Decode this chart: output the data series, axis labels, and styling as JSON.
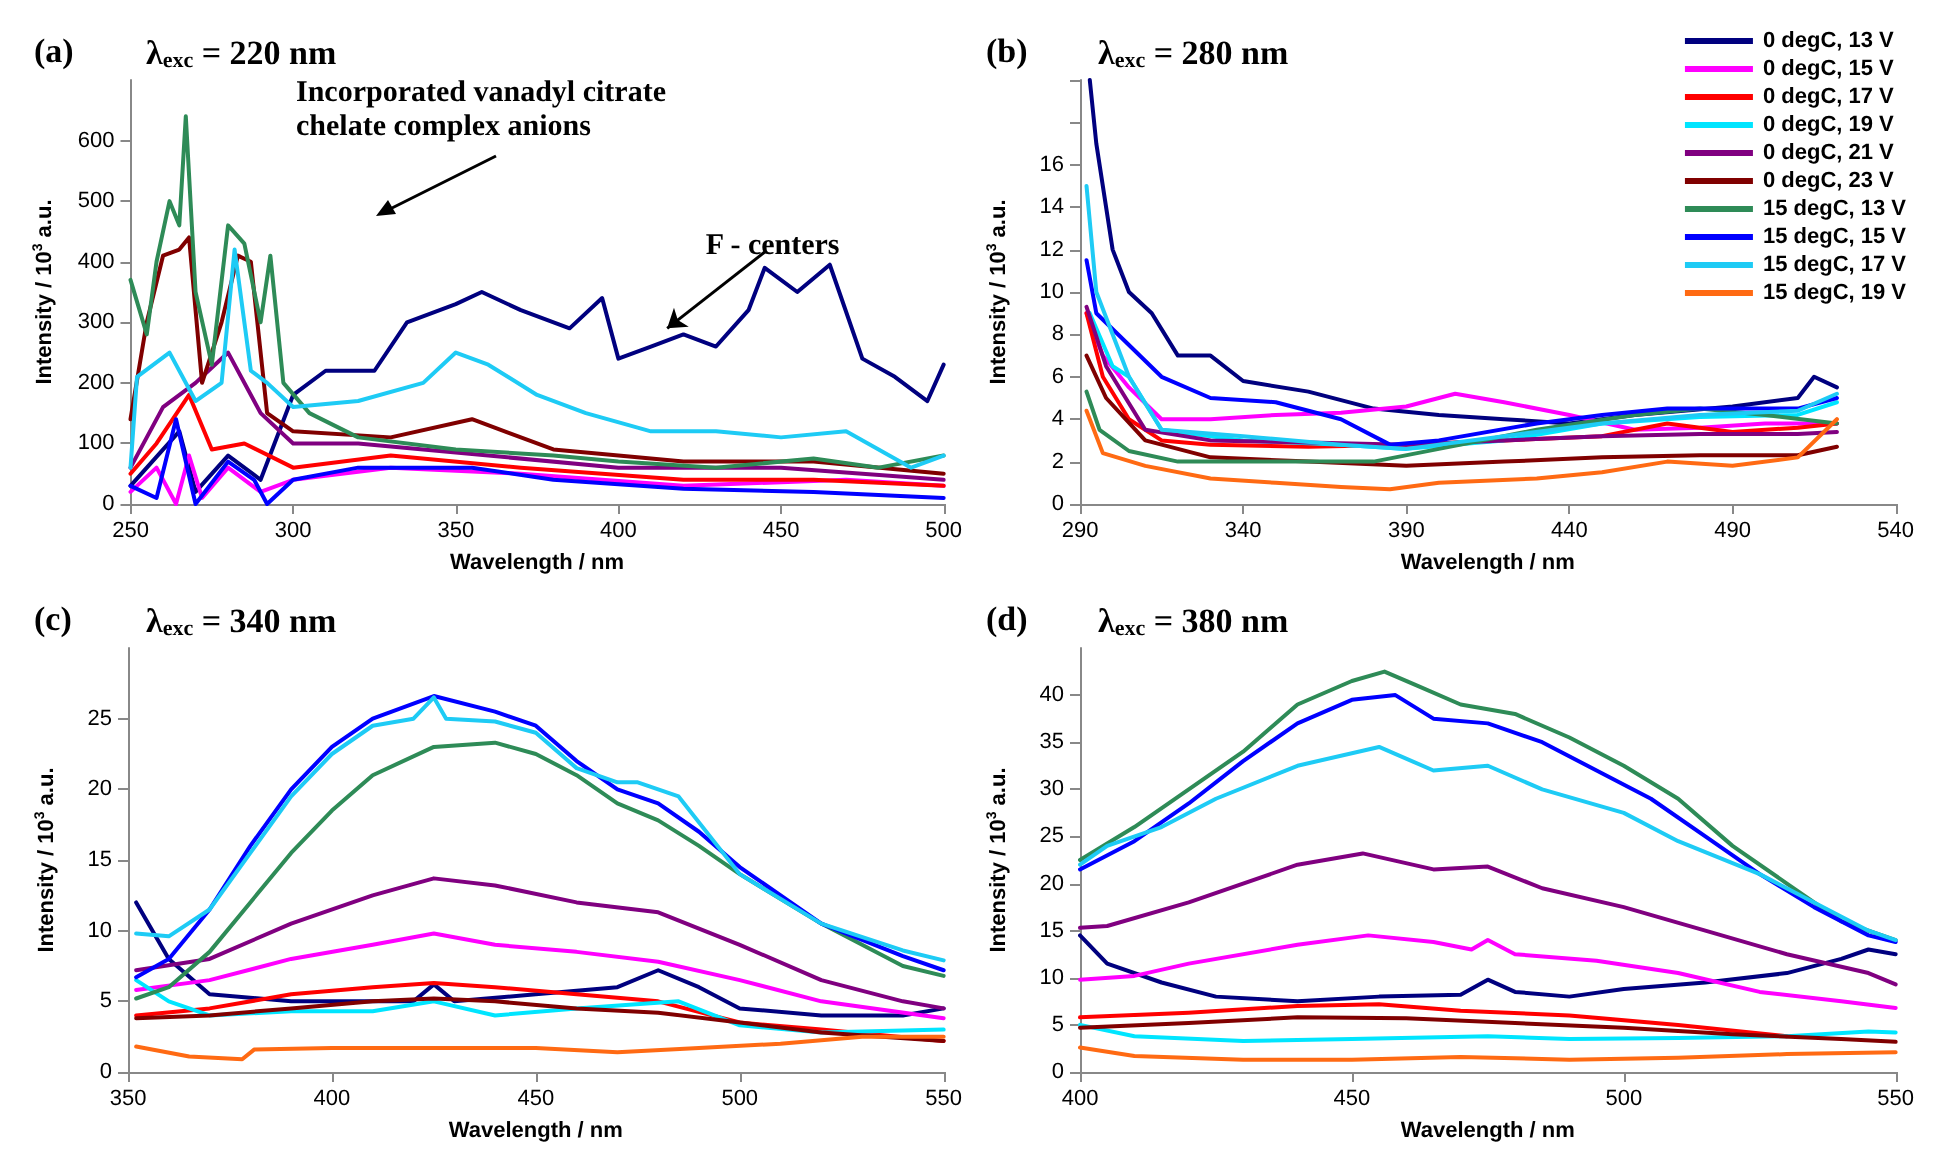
{
  "chart_data": [
    {
      "type": "line",
      "title": "(a)",
      "subtitle": "λ$_{exc}$ = 220 nm",
      "xlabel": "Wavelength / nm",
      "ylabel": "Intensity / 10$^{3}$ a.u.",
      "xlim": [
        250,
        500
      ],
      "xticks": [
        250,
        300,
        350,
        400,
        450,
        500
      ],
      "ylim": [
        0,
        700
      ],
      "yticks": [
        0,
        100,
        200,
        300,
        400,
        500,
        600
      ],
      "grid": false,
      "legend": false,
      "marker": "none",
      "line_style": "solid",
      "annotations": [
        "Incorporated vanadyl citrate chelate complex anions",
        {
          "text": "F - centers",
          "x": 415,
          "y": 290
        }
      ],
      "series": [
        {
          "color": "#00007f",
          "x": [
            250,
            265,
            270,
            280,
            290,
            300,
            310,
            325,
            335,
            350,
            358,
            370,
            385,
            395,
            400,
            410,
            420,
            430,
            440,
            445,
            455,
            465,
            475,
            485,
            495,
            500
          ],
          "values": [
            30,
            120,
            20,
            80,
            40,
            180,
            220,
            220,
            300,
            330,
            350,
            320,
            290,
            340,
            240,
            260,
            280,
            260,
            320,
            390,
            350,
            395,
            240,
            210,
            170,
            230
          ]
        },
        {
          "color": "#ff00ff",
          "x": [
            250,
            258,
            264,
            268,
            272,
            280,
            290,
            300,
            330,
            370,
            420,
            470,
            500
          ],
          "values": [
            20,
            60,
            0,
            80,
            10,
            60,
            20,
            40,
            60,
            50,
            30,
            40,
            30
          ]
        },
        {
          "color": "#ff0000",
          "x": [
            250,
            258,
            268,
            275,
            285,
            300,
            330,
            370,
            420,
            460,
            500
          ],
          "values": [
            50,
            100,
            180,
            90,
            100,
            60,
            80,
            60,
            40,
            40,
            30
          ]
        },
        {
          "color": "#800080",
          "x": [
            250,
            260,
            270,
            280,
            290,
            300,
            320,
            360,
            400,
            450,
            500
          ],
          "values": [
            60,
            160,
            200,
            250,
            150,
            100,
            100,
            80,
            60,
            60,
            40
          ]
        },
        {
          "color": "#800000",
          "x": [
            250,
            255,
            260,
            265,
            268,
            272,
            278,
            283,
            287,
            292,
            300,
            330,
            355,
            380,
            420,
            460,
            500
          ],
          "values": [
            140,
            300,
            410,
            420,
            440,
            200,
            300,
            410,
            400,
            150,
            120,
            110,
            140,
            90,
            70,
            70,
            50
          ]
        },
        {
          "color": "#2e8b57",
          "x": [
            250,
            255,
            258,
            262,
            265,
            267,
            270,
            275,
            280,
            285,
            290,
            293,
            297,
            305,
            320,
            350,
            380,
            400,
            430,
            460,
            480,
            500
          ],
          "values": [
            370,
            280,
            400,
            500,
            460,
            640,
            350,
            230,
            460,
            430,
            300,
            410,
            200,
            150,
            110,
            90,
            80,
            70,
            60,
            75,
            60,
            80
          ]
        },
        {
          "color": "#0000ff",
          "x": [
            250,
            258,
            264,
            270,
            280,
            288,
            292,
            300,
            320,
            340,
            355,
            380,
            420,
            460,
            500
          ],
          "values": [
            30,
            10,
            140,
            0,
            70,
            40,
            0,
            40,
            60,
            60,
            60,
            40,
            25,
            20,
            10
          ]
        },
        {
          "color": "#1ecbf5",
          "x": [
            250,
            252,
            262,
            270,
            278,
            282,
            287,
            292,
            300,
            320,
            340,
            350,
            360,
            375,
            390,
            410,
            430,
            450,
            470,
            490,
            500
          ],
          "values": [
            60,
            210,
            250,
            170,
            200,
            420,
            220,
            200,
            160,
            170,
            200,
            250,
            230,
            180,
            150,
            120,
            120,
            110,
            120,
            60,
            80
          ]
        }
      ]
    },
    {
      "type": "line",
      "title": "(b)",
      "subtitle": "λ$_{exc}$ = 280 nm",
      "xlabel": "Wavelength / nm",
      "ylabel": "Intensity / 10$^{3}$ a.u.",
      "xlim": [
        290,
        540
      ],
      "xticks": [
        290,
        340,
        390,
        440,
        490,
        540
      ],
      "ylim": [
        0,
        20
      ],
      "yticks": [
        0,
        2,
        4,
        6,
        8,
        10,
        12,
        14,
        16,
        {
          "value": 18,
          "label": null
        },
        {
          "value": 20,
          "label": null
        }
      ],
      "grid": false,
      "legend": "top right",
      "marker": "none",
      "line_style": "solid",
      "series": [
        {
          "name": "0 degC, 13 V",
          "color": "#00007f",
          "x": [
            293,
            295,
            300,
            305,
            312,
            320,
            330,
            340,
            360,
            380,
            400,
            420,
            440,
            460,
            490,
            510,
            515,
            522
          ],
          "values": [
            20,
            17,
            12,
            10,
            9,
            7,
            7,
            5.8,
            5.3,
            4.5,
            4.2,
            4,
            3.8,
            4.2,
            4.6,
            5,
            6,
            5.5
          ]
        },
        {
          "name": "0 degC, 15 V",
          "color": "#ff00ff",
          "x": [
            292,
            297,
            305,
            315,
            330,
            350,
            370,
            390,
            405,
            420,
            440,
            460,
            480,
            500,
            522
          ],
          "values": [
            9,
            7,
            5.5,
            4,
            4,
            4.2,
            4.3,
            4.6,
            5.2,
            4.8,
            4.2,
            3.5,
            3.6,
            3.8,
            3.8
          ]
        },
        {
          "name": "0 degC, 17 V",
          "color": "#ff0000",
          "x": [
            292,
            297,
            305,
            315,
            330,
            360,
            390,
            420,
            450,
            470,
            490,
            510,
            522
          ],
          "values": [
            9,
            6,
            4,
            3,
            2.8,
            2.7,
            2.8,
            3,
            3.2,
            3.8,
            3.4,
            3.6,
            3.8
          ]
        },
        {
          "name": "0 degC, 19 V",
          "color": "#00e5ff",
          "x": [
            293,
            300,
            305,
            315,
            340,
            370,
            390,
            420,
            450,
            480,
            510,
            522
          ],
          "values": [
            9,
            6.5,
            6,
            3.5,
            3,
            2.8,
            2.6,
            3,
            3.8,
            4.1,
            4.2,
            4.8
          ]
        },
        {
          "name": "0 degC, 21 V",
          "color": "#800080",
          "x": [
            292,
            298,
            310,
            330,
            360,
            390,
            420,
            450,
            480,
            510,
            522
          ],
          "values": [
            9.3,
            6.5,
            3.5,
            3,
            2.9,
            2.8,
            3,
            3.2,
            3.3,
            3.3,
            3.4
          ]
        },
        {
          "name": "0 degC, 23 V",
          "color": "#800000",
          "x": [
            292,
            298,
            310,
            330,
            360,
            390,
            420,
            450,
            480,
            510,
            522
          ],
          "values": [
            7,
            5,
            3,
            2.2,
            2,
            1.8,
            2,
            2.2,
            2.3,
            2.3,
            2.7
          ]
        },
        {
          "name": "15 degC, 13 V",
          "color": "#2e8b57",
          "x": [
            292,
            296,
            305,
            320,
            350,
            380,
            400,
            430,
            460,
            480,
            500,
            522
          ],
          "values": [
            5.3,
            3.5,
            2.5,
            2,
            2,
            2,
            2.6,
            3.5,
            4.2,
            4.5,
            4.2,
            3.8
          ]
        },
        {
          "name": "15 degC, 15 V",
          "color": "#0000ff",
          "x": [
            292,
            295,
            305,
            315,
            330,
            350,
            370,
            385,
            400,
            430,
            450,
            470,
            490,
            510,
            522
          ],
          "values": [
            11.5,
            9,
            7.5,
            6,
            5,
            4.8,
            4,
            2.8,
            3,
            3.8,
            4.2,
            4.5,
            4.5,
            4.5,
            5
          ]
        },
        {
          "name": "15 degC, 17 V",
          "color": "#1ecbf5",
          "x": [
            292,
            295,
            305,
            315,
            340,
            370,
            390,
            420,
            450,
            480,
            510,
            522
          ],
          "values": [
            15,
            10,
            6,
            3.5,
            3.2,
            2.8,
            2.6,
            3.2,
            3.8,
            4.2,
            4.4,
            5.2
          ]
        },
        {
          "name": "15 degC, 19 V",
          "color": "#ff6a13",
          "x": [
            292,
            297,
            310,
            330,
            350,
            370,
            385,
            400,
            430,
            450,
            470,
            490,
            510,
            522
          ],
          "values": [
            4.4,
            2.4,
            1.8,
            1.2,
            1,
            0.8,
            0.7,
            1,
            1.2,
            1.5,
            2,
            1.8,
            2.2,
            4
          ]
        }
      ]
    },
    {
      "type": "line",
      "title": "(c)",
      "subtitle": "λ$_{exc}$ = 340 nm",
      "xlabel": "Wavelength / nm",
      "ylabel": "Intensity / 10$^{3}$ a.u.",
      "xlim": [
        350,
        550
      ],
      "xticks": [
        350,
        400,
        450,
        500,
        550
      ],
      "ylim": [
        0,
        30
      ],
      "yticks": [
        0,
        5,
        10,
        15,
        20,
        25
      ],
      "grid": false,
      "legend": false,
      "marker": "none",
      "line_style": "solid",
      "series": [
        {
          "color": "#00007f",
          "x": [
            352,
            360,
            370,
            390,
            410,
            420,
            425,
            430,
            450,
            470,
            480,
            490,
            500,
            520,
            540,
            550
          ],
          "values": [
            12,
            8,
            5.5,
            5,
            5,
            5,
            6.2,
            5,
            5.5,
            6,
            7.2,
            6,
            4.5,
            4,
            4,
            4.5
          ]
        },
        {
          "color": "#ff00ff",
          "x": [
            352,
            370,
            390,
            410,
            425,
            440,
            460,
            480,
            500,
            520,
            550
          ],
          "values": [
            5.8,
            6.5,
            8,
            9,
            9.8,
            9,
            8.5,
            7.8,
            6.5,
            5,
            3.8
          ]
        },
        {
          "color": "#ff0000",
          "x": [
            352,
            370,
            390,
            410,
            425,
            440,
            460,
            480,
            500,
            520,
            550
          ],
          "values": [
            4,
            4.5,
            5.5,
            6,
            6.3,
            6,
            5.5,
            5,
            3.5,
            3,
            2.2
          ]
        },
        {
          "color": "#00e5ff",
          "x": [
            352,
            360,
            370,
            390,
            410,
            425,
            440,
            460,
            485,
            500,
            520,
            550
          ],
          "values": [
            6.5,
            5,
            4,
            4.3,
            4.3,
            5,
            4,
            4.5,
            5,
            3.3,
            2.8,
            3
          ]
        },
        {
          "color": "#800080",
          "x": [
            352,
            370,
            390,
            410,
            425,
            440,
            460,
            480,
            500,
            520,
            540,
            550
          ],
          "values": [
            7.2,
            8,
            10.5,
            12.5,
            13.7,
            13.2,
            12,
            11.3,
            9,
            6.5,
            5,
            4.5
          ]
        },
        {
          "color": "#800000",
          "x": [
            352,
            370,
            390,
            410,
            425,
            440,
            460,
            480,
            500,
            520,
            550
          ],
          "values": [
            3.8,
            4,
            4.5,
            5,
            5.2,
            5,
            4.5,
            4.2,
            3.5,
            2.8,
            2.2
          ]
        },
        {
          "color": "#2e8b57",
          "x": [
            352,
            360,
            370,
            380,
            390,
            400,
            410,
            425,
            440,
            450,
            460,
            470,
            480,
            490,
            500,
            520,
            540,
            550
          ],
          "values": [
            5.2,
            6,
            8.5,
            12,
            15.5,
            18.5,
            21,
            23,
            23.3,
            22.5,
            21,
            19,
            17.8,
            16,
            14,
            10.5,
            7.5,
            6.8
          ]
        },
        {
          "color": "#0000ff",
          "x": [
            352,
            360,
            370,
            380,
            390,
            400,
            410,
            425,
            440,
            450,
            460,
            470,
            480,
            490,
            500,
            520,
            540,
            550
          ],
          "values": [
            6.7,
            8,
            11.5,
            16,
            20,
            23,
            25,
            26.6,
            25.5,
            24.5,
            22,
            20,
            19,
            17,
            14.5,
            10.5,
            8.2,
            7.2
          ]
        },
        {
          "color": "#1ecbf5",
          "x": [
            352,
            360,
            370,
            380,
            390,
            400,
            410,
            420,
            425,
            428,
            440,
            450,
            460,
            470,
            475,
            485,
            500,
            520,
            540,
            550
          ],
          "values": [
            9.8,
            9.6,
            11.5,
            15.5,
            19.5,
            22.5,
            24.5,
            25,
            26.5,
            25,
            24.8,
            24,
            21.5,
            20.5,
            20.5,
            19.5,
            14,
            10.5,
            8.6,
            7.9
          ]
        },
        {
          "color": "#ff6a13",
          "x": [
            352,
            365,
            378,
            381,
            400,
            425,
            450,
            470,
            490,
            510,
            530,
            550
          ],
          "values": [
            1.8,
            1.1,
            0.9,
            1.6,
            1.7,
            1.7,
            1.7,
            1.4,
            1.7,
            2,
            2.5,
            2.5
          ]
        }
      ]
    },
    {
      "type": "line",
      "title": "(d)",
      "subtitle": "λ$_{exc}$ = 380 nm",
      "xlabel": "Wavelength / nm",
      "ylabel": "Intensity / 10$^{3}$ a.u.",
      "xlim": [
        400,
        550
      ],
      "xticks": [
        400,
        450,
        500,
        550
      ],
      "ylim": [
        0,
        45
      ],
      "yticks": [
        0,
        5,
        10,
        15,
        20,
        25,
        30,
        35,
        40
      ],
      "grid": false,
      "legend": false,
      "marker": "none",
      "line_style": "solid",
      "series": [
        {
          "color": "#00007f",
          "x": [
            400,
            405,
            415,
            425,
            440,
            455,
            470,
            475,
            480,
            490,
            500,
            515,
            530,
            540,
            545,
            550
          ],
          "values": [
            14.5,
            11.5,
            9.5,
            8,
            7.5,
            8,
            8.2,
            9.8,
            8.5,
            8,
            8.8,
            9.5,
            10.5,
            12,
            13,
            12.5
          ]
        },
        {
          "color": "#ff00ff",
          "x": [
            400,
            410,
            420,
            440,
            453,
            465,
            472,
            475,
            480,
            495,
            510,
            525,
            540,
            550
          ],
          "values": [
            9.8,
            10.2,
            11.5,
            13.5,
            14.5,
            13.8,
            13,
            14,
            12.5,
            11.8,
            10.5,
            8.5,
            7.5,
            6.8
          ]
        },
        {
          "color": "#ff0000",
          "x": [
            400,
            420,
            440,
            455,
            470,
            490,
            510,
            530
          ],
          "values": [
            5.8,
            6.3,
            7,
            7.2,
            6.5,
            6,
            5,
            3.8
          ]
        },
        {
          "color": "#00e5ff",
          "x": [
            400,
            410,
            430,
            450,
            475,
            490,
            510,
            530,
            545,
            550
          ],
          "values": [
            5,
            3.8,
            3.3,
            3.5,
            3.8,
            3.5,
            3.6,
            3.8,
            4.3,
            4.2
          ]
        },
        {
          "color": "#800080",
          "x": [
            400,
            405,
            420,
            440,
            452,
            465,
            475,
            485,
            500,
            515,
            530,
            545,
            550
          ],
          "values": [
            15.3,
            15.5,
            18,
            22,
            23.2,
            21.5,
            21.8,
            19.5,
            17.5,
            15,
            12.5,
            10.5,
            9.3
          ]
        },
        {
          "color": "#800000",
          "x": [
            400,
            420,
            440,
            460,
            480,
            500,
            520,
            540,
            550
          ],
          "values": [
            4.7,
            5.2,
            5.8,
            5.7,
            5.2,
            4.7,
            4,
            3.5,
            3.2
          ]
        },
        {
          "color": "#2e8b57",
          "x": [
            400,
            410,
            420,
            430,
            440,
            450,
            456,
            462,
            470,
            480,
            490,
            500,
            510,
            520,
            530,
            540,
            550
          ],
          "values": [
            22.5,
            26,
            30,
            34,
            39,
            41.5,
            42.5,
            41,
            39,
            38,
            35.5,
            32.5,
            29,
            24,
            20,
            16,
            14
          ]
        },
        {
          "color": "#0000ff",
          "x": [
            400,
            410,
            420,
            430,
            440,
            450,
            458,
            465,
            475,
            485,
            495,
            505,
            515,
            525,
            535,
            545,
            550
          ],
          "values": [
            21.5,
            24.5,
            28.5,
            33,
            37,
            39.5,
            40,
            37.5,
            37,
            35,
            32,
            29,
            25,
            21,
            17.5,
            14.5,
            13.8
          ]
        },
        {
          "color": "#1ecbf5",
          "x": [
            400,
            405,
            415,
            425,
            440,
            455,
            465,
            475,
            485,
            500,
            510,
            525,
            535,
            545,
            550
          ],
          "values": [
            22,
            24,
            26,
            29,
            32.5,
            34.5,
            32,
            32.5,
            30,
            27.5,
            24.5,
            21,
            18,
            15,
            14
          ]
        },
        {
          "color": "#ff6a13",
          "x": [
            400,
            410,
            430,
            450,
            470,
            490,
            510,
            530,
            550
          ],
          "values": [
            2.6,
            1.7,
            1.3,
            1.3,
            1.6,
            1.3,
            1.5,
            1.9,
            2.1
          ]
        }
      ]
    }
  ]
}
